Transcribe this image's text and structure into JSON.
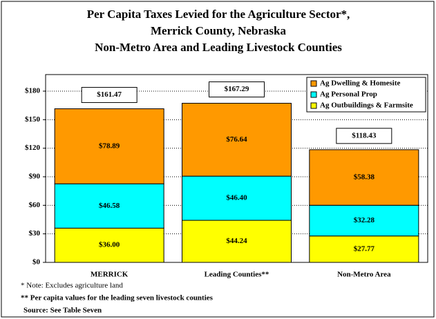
{
  "chart_data": {
    "type": "bar",
    "title": [
      "Per Capita Taxes Levied for the Agriculture Sector*,",
      "Merrick County, Nebraska",
      "Non-Metro Area and Leading Livestock Counties"
    ],
    "categories": [
      "MERRICK",
      "Leading Counties**",
      "Non-Metro Area"
    ],
    "series": [
      {
        "name": "Ag Outbuildings & Farmsite",
        "color": "#ffff00",
        "values": [
          36.0,
          44.24,
          27.77
        ],
        "value_labels": [
          "$36.00",
          "$44.24",
          "$27.77"
        ]
      },
      {
        "name": "Ag Personal Prop",
        "color": "#00ffff",
        "values": [
          46.58,
          46.4,
          32.28
        ],
        "value_labels": [
          "$46.58",
          "$46.40",
          "$32.28"
        ]
      },
      {
        "name": "Ag Dwelling & Homesite",
        "color": "#ff9900",
        "values": [
          78.89,
          76.64,
          58.38
        ],
        "value_labels": [
          "$78.89",
          "$76.64",
          "$58.38"
        ]
      }
    ],
    "totals": [
      161.47,
      167.29,
      118.43
    ],
    "total_labels": [
      "$161.47",
      "$167.29",
      "$118.43"
    ],
    "stacked": true,
    "ylim": [
      0,
      180
    ],
    "yticks": [
      {
        "value": 0,
        "label": "$0"
      },
      {
        "value": 30,
        "label": "$30"
      },
      {
        "value": 60,
        "label": "$60"
      },
      {
        "value": 90,
        "label": "$90"
      },
      {
        "value": 120,
        "label": "$120"
      },
      {
        "value": 150,
        "label": "$150"
      },
      {
        "value": 180,
        "label": "$180"
      }
    ],
    "grid": true,
    "legend": "top-right",
    "notes": [
      "* Note:  Excludes agriculture land",
      "** Per capita values for the leading seven livestock counties",
      "Source:  See Table Seven"
    ]
  }
}
